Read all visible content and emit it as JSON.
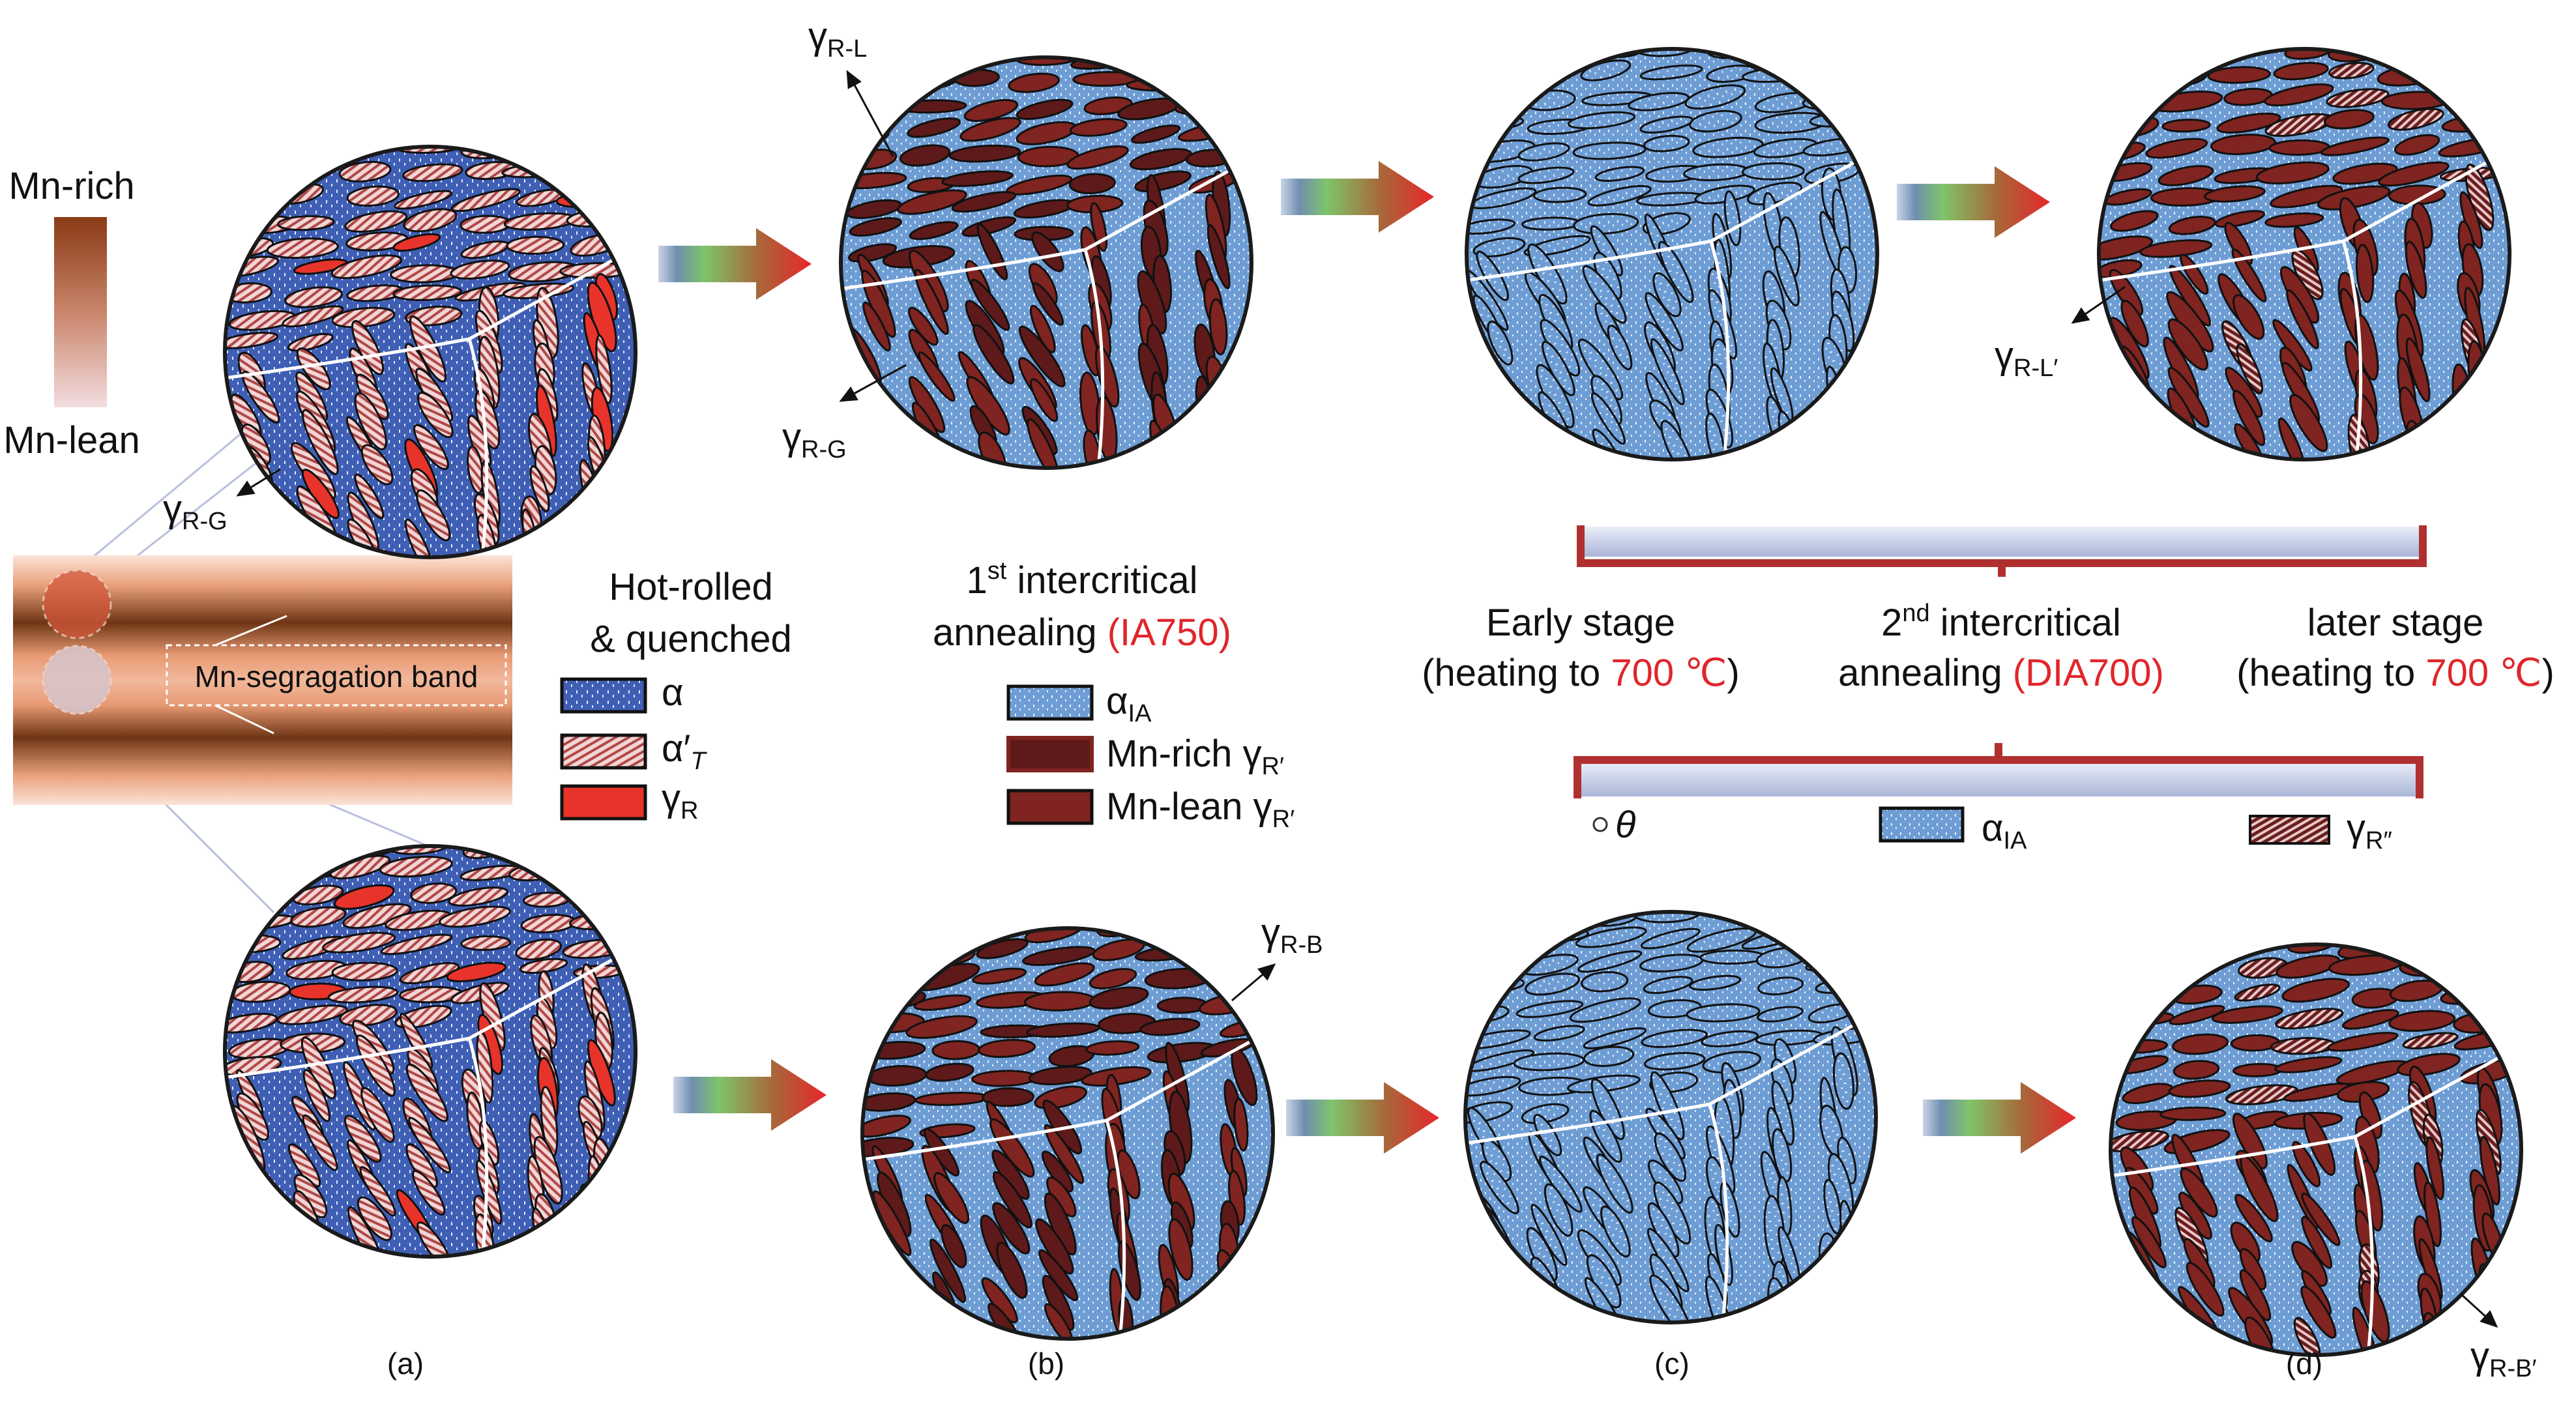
{
  "gradient_bar": {
    "top_label": "Mn-rich",
    "bottom_label": "Mn-lean"
  },
  "band": {
    "label": "Mn-segragation band"
  },
  "annotations": {
    "a_top": {
      "main": "γ",
      "sub": "R-G"
    },
    "b_top_gl": {
      "main": "γ",
      "sub": "R-L"
    },
    "b_top_gg": {
      "main": "γ",
      "sub": "R-G"
    },
    "d_top": {
      "main": "γ",
      "sub": "R-L′"
    },
    "b_bottom": {
      "main": "γ",
      "sub": "R-B"
    },
    "d_bottom": {
      "main": "γ",
      "sub": "R-B′"
    }
  },
  "hot_rolled": {
    "title_line1": "Hot-rolled",
    "title_line2": "& quenched",
    "legend": [
      {
        "main": "α",
        "sub": "",
        "pattern": "alpha-blue-dots"
      },
      {
        "main": "α′",
        "sub": "T",
        "pattern": "hatched-pink"
      },
      {
        "main": "γ",
        "sub": "R",
        "pattern": "solid-red"
      }
    ]
  },
  "first_ia": {
    "line1_pre": "1",
    "line1_sup": "st",
    "line1_post": " intercritical",
    "line2": "annealing ",
    "line2_red": "(IA750)",
    "legend": [
      {
        "main": "α",
        "sub": "IA",
        "pattern": "light-blue-dots"
      },
      {
        "main": "Mn-rich γ",
        "sub": "R′",
        "pattern": "dark-maroon"
      },
      {
        "main": "Mn-lean γ",
        "sub": "R′",
        "pattern": "maroon"
      }
    ]
  },
  "second_ia": {
    "early_line1": "Early stage",
    "early_line2_pre": "(heating to ",
    "early_line2_red": "700 ℃",
    "early_line2_post": ")",
    "mid_line1_pre": "2",
    "mid_line1_sup": "nd",
    "mid_line1_post": " intercritical",
    "mid_line2": "annealing ",
    "mid_line2_red": "(DIA700)",
    "later_line1": "later stage",
    "later_line2_pre": "(heating to ",
    "later_line2_red": "700 ℃",
    "later_line2_post": ")",
    "legend": [
      {
        "main": "θ",
        "sub": "",
        "pattern": "small-circle"
      },
      {
        "main": "α",
        "sub": "IA",
        "pattern": "light-blue-dots"
      },
      {
        "main": "γ",
        "sub": "R″",
        "pattern": "hatched-maroon"
      }
    ]
  },
  "panel_labels": [
    "(a)",
    "(b)",
    "(c)",
    "(d)"
  ],
  "colors": {
    "alpha": "#3f5fb5",
    "alpha_ia": "#6e9dd4",
    "mn_rich": "#5e1a1a",
    "mn_lean": "#7f2420",
    "gamma_r": "#e8332b",
    "text_red": "#e0262b",
    "bracket": "#b03030"
  }
}
